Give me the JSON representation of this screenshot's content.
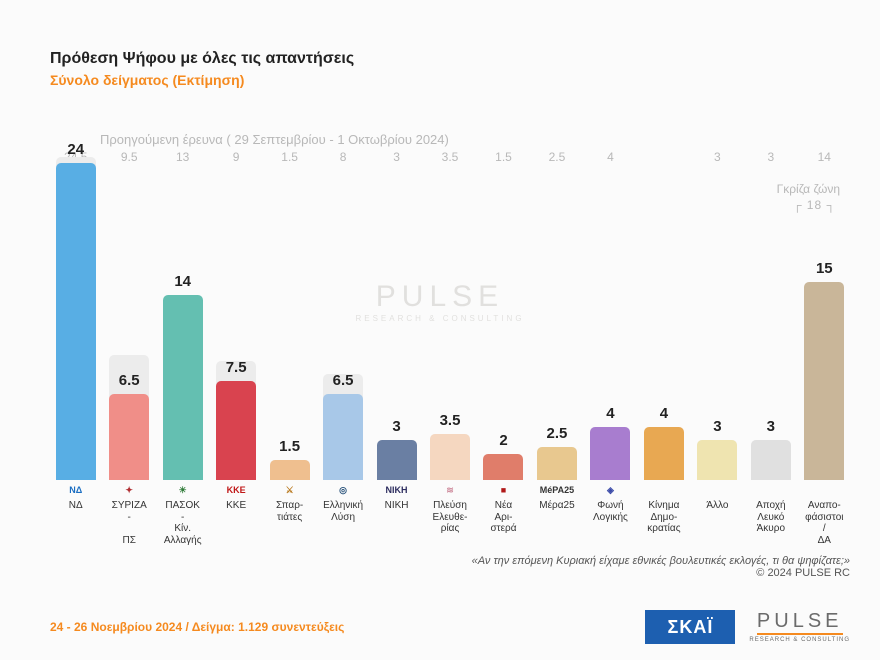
{
  "title": "Πρόθεση Ψήφου με όλες τις απαντήσεις",
  "subtitle": "Σύνολο δείγματος   (Εκτίμηση)",
  "previous_survey_label": "Προηγούμενη έρευνα ( 29 Σεπτεμβρίου - 1 Οκτωβρίου 2024)",
  "grey_zone_label": "Γκρίζα ζώνη",
  "grey_zone_value": "18",
  "chart": {
    "type": "bar",
    "y_max": 25,
    "prev_bar_color": "#ececec",
    "value_fontsize": 15,
    "prev_value_fontsize": 12,
    "prev_value_color": "#b8b8b8",
    "label_fontsize": 10,
    "background_color": "#fbfbfb",
    "items": [
      {
        "label": "ΝΔ",
        "value": 24,
        "prev": 24.5,
        "color": "#58aee4",
        "logo_text": "ΝΔ",
        "logo_color": "#1b6ec2"
      },
      {
        "label": "ΣΥΡΙΖΑ - ΠΣ",
        "value": 6.5,
        "prev": 9.5,
        "color": "#f08e88",
        "logo_text": "✦",
        "logo_color": "#b02f33"
      },
      {
        "label": "ΠΑΣΟΚ -Κίν. Αλλαγής",
        "value": 14,
        "prev": 13,
        "color": "#64bfb1",
        "logo_text": "☀",
        "logo_color": "#2f7b38"
      },
      {
        "label": "ΚΚΕ",
        "value": 7.5,
        "prev": 9,
        "color": "#d9434f",
        "logo_text": "ΚΚΕ",
        "logo_color": "#c01717"
      },
      {
        "label": "Σπαρ-τιάτες",
        "value": 1.5,
        "prev": 1.5,
        "color": "#efbf8f",
        "logo_text": "⚔",
        "logo_color": "#b97a20"
      },
      {
        "label": "Ελληνική Λύση",
        "value": 6.5,
        "prev": 8,
        "color": "#a8c8e8",
        "logo_text": "◎",
        "logo_color": "#2b547c"
      },
      {
        "label": "ΝΙΚΗ",
        "value": 3,
        "prev": 3,
        "color": "#6a7fa3",
        "logo_text": "ΝΙΚΗ",
        "logo_color": "#2c2c5e"
      },
      {
        "label": "Πλεύση Ελευθε-ρίας",
        "value": 3.5,
        "prev": 3.5,
        "color": "#f5d7c0",
        "logo_text": "≋",
        "logo_color": "#d08fa0"
      },
      {
        "label": "Νέα Αρι-στερά",
        "value": 2,
        "prev": 1.5,
        "color": "#e07d6a",
        "logo_text": "■",
        "logo_color": "#b01818"
      },
      {
        "label": "Μέρα25",
        "value": 2.5,
        "prev": 2.5,
        "color": "#e8c88f",
        "logo_text": "MéPA25",
        "logo_color": "#333333"
      },
      {
        "label": "Φωνή Λογικής",
        "value": 4,
        "prev": 4,
        "color": "#a87dcf",
        "logo_text": "◈",
        "logo_color": "#3a4aa8"
      },
      {
        "label": "Κίνημα Δημο-κρατίας",
        "value": 4,
        "prev": null,
        "color": "#e8a852",
        "logo_text": "",
        "logo_color": ""
      },
      {
        "label": "Άλλο",
        "value": 3,
        "prev": 3,
        "color": "#efe4b0",
        "logo_text": "",
        "logo_color": ""
      },
      {
        "label": "Αποχή Λευκό Άκυρο",
        "value": 3,
        "prev": 3,
        "color": "#e0e0e0",
        "logo_text": "",
        "logo_color": ""
      },
      {
        "label": "Αναπο-φάσιστοι / ΔΑ",
        "value": 15,
        "prev": 14,
        "color": "#c9b699",
        "logo_text": "",
        "logo_color": ""
      }
    ]
  },
  "question_text": "«Αν την επόμενη Κυριακή είχαμε εθνικές βουλευτικές εκλογές, τι θα ψηφίζατε;»",
  "copyright_text": "©  2024  PULSE RC",
  "footer_left": "24 - 26 Νοεμβρίου 2024  /  Δείγμα:  1.129 συνεντεύξεις",
  "skai_logo_text": "ΣΚΑΪ",
  "pulse_logo_text": "PULSE",
  "pulse_logo_sub": "RESEARCH & CONSULTING",
  "watermark_main": "PULSE",
  "watermark_sub": "RESEARCH & CONSULTING"
}
